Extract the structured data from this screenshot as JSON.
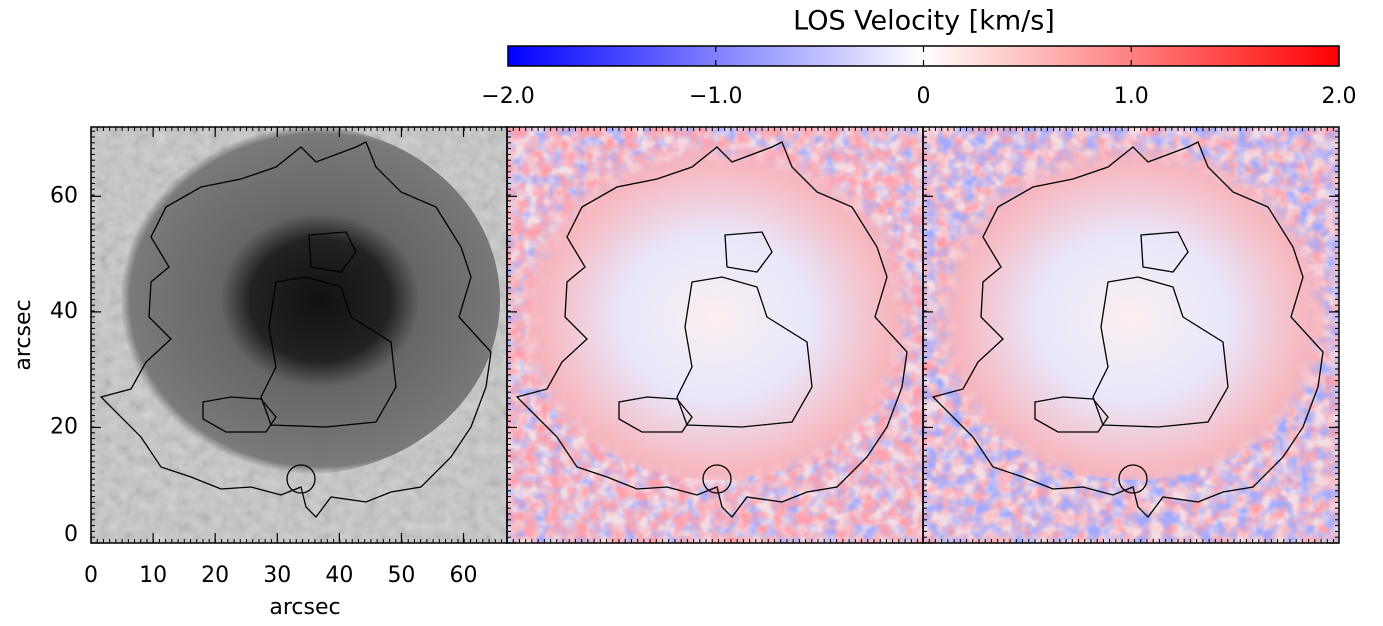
{
  "chart_data": {
    "type": "image",
    "colorbar": {
      "title": "LOS Velocity [km/s]",
      "lim": [
        -2,
        2
      ],
      "ticks": [
        {
          "value": -2,
          "label": "−2.0"
        },
        {
          "value": -1,
          "label": "−1.0"
        },
        0,
        {
          "value": 1,
          "label": "1.0"
        },
        {
          "value": 2,
          "label": "2.0"
        }
      ],
      "colors": [
        "#0000ff",
        "#ffffff",
        "#ff0000"
      ]
    },
    "xlabel": "arcsec",
    "ylabel": "arcsec",
    "xlim": [
      0,
      67
    ],
    "ylim": [
      0,
      72
    ],
    "xticks": [
      0,
      10,
      20,
      30,
      40,
      50,
      60
    ],
    "yticks": [
      0,
      20,
      40,
      60
    ]
  }
}
